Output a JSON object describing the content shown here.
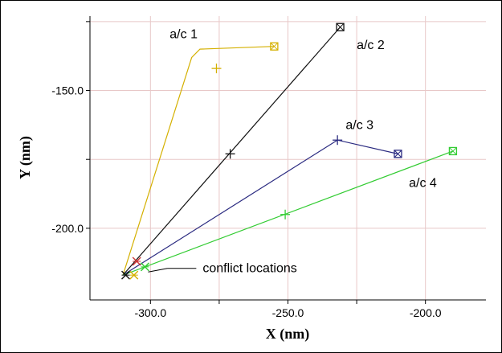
{
  "chart_data": {
    "type": "line",
    "xlabel": "X (nm)",
    "ylabel": "Y (nm)",
    "xlim": [
      -322,
      -178
    ],
    "ylim": [
      -226,
      -123
    ],
    "x_ticks": [
      -300,
      -250,
      -200
    ],
    "x_tick_labels": [
      "-300.0",
      "-250.0",
      "-200.0"
    ],
    "y_ticks": [
      -150,
      -200
    ],
    "y_tick_labels": [
      "-150.0",
      "-200.0"
    ],
    "x_grid": [
      -300,
      -275,
      -250,
      -225,
      -200
    ],
    "y_grid": [
      -125,
      -150,
      -175,
      -200
    ],
    "grid": true,
    "grid_color": "#e8c8c8",
    "series": [
      {
        "name": "a/c 1",
        "color": "#d4b000",
        "points": [
          [
            -310,
            -217
          ],
          [
            -285,
            -138
          ],
          [
            -282,
            -135
          ],
          [
            -255,
            -134
          ]
        ],
        "end": [
          -255,
          -134
        ],
        "mid": [
          -276,
          -142
        ]
      },
      {
        "name": "a/c 2",
        "color": "#111111",
        "points": [
          [
            -310,
            -217
          ],
          [
            -231,
            -127
          ]
        ],
        "end": [
          -231,
          -127
        ],
        "mid": [
          -271,
          -173
        ]
      },
      {
        "name": "a/c 3",
        "color": "#2a2a80",
        "points": [
          [
            -310,
            -217
          ],
          [
            -232,
            -168
          ],
          [
            -210,
            -173
          ]
        ],
        "end": [
          -210,
          -173
        ],
        "mid": [
          -232,
          -168
        ]
      },
      {
        "name": "a/c 4",
        "color": "#33cc33",
        "points": [
          [
            -310,
            -217
          ],
          [
            -190,
            -172
          ]
        ],
        "end": [
          -190,
          -172
        ],
        "mid": [
          -251,
          -195
        ]
      }
    ],
    "conflict_points": [
      [
        -309,
        -217
      ],
      [
        -306,
        -217
      ],
      [
        -305,
        -212
      ],
      [
        -302,
        -214
      ]
    ],
    "annotations": {
      "conflict_label": "conflict locations",
      "conflict_arrow_target": [
        -302,
        -215
      ]
    },
    "label_positions": {
      "a/c 1": [
        -293,
        -131
      ],
      "a/c 2": [
        -225,
        -135
      ],
      "a/c 3": [
        -229,
        -164
      ],
      "a/c 4": [
        -206,
        -185
      ],
      "conflict": [
        -281,
        -216
      ]
    }
  }
}
